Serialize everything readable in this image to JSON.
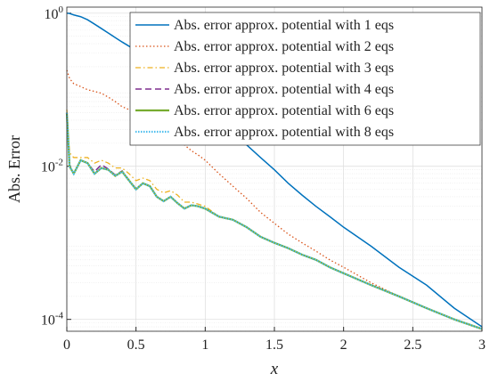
{
  "chart_data": {
    "type": "line",
    "xlabel": "x",
    "ylabel": "Abs. Error",
    "x": [
      0,
      0.02,
      0.05,
      0.1,
      0.15,
      0.2,
      0.25,
      0.3,
      0.35,
      0.4,
      0.45,
      0.5,
      0.55,
      0.6,
      0.65,
      0.7,
      0.75,
      0.8,
      0.85,
      0.9,
      0.95,
      1.0,
      1.1,
      1.2,
      1.3,
      1.4,
      1.5,
      1.6,
      1.7,
      1.8,
      1.9,
      2.0,
      2.2,
      2.4,
      2.6,
      2.8,
      3.0
    ],
    "series": [
      {
        "name": "Abs. error approx. potential with 1 eqs",
        "color": "#0072bd",
        "dash": "none",
        "width": 1.5,
        "values": [
          1.0,
          0.99,
          0.95,
          0.9,
          0.82,
          0.72,
          0.63,
          0.55,
          0.48,
          0.42,
          0.37,
          0.32,
          0.27,
          0.23,
          0.19,
          0.16,
          0.13,
          0.11,
          0.095,
          0.08,
          0.068,
          0.058,
          0.04,
          0.028,
          0.019,
          0.013,
          0.009,
          0.006,
          0.0042,
          0.003,
          0.0022,
          0.0016,
          0.0009,
          0.00048,
          0.00028,
          0.00014,
          8e-05
        ]
      },
      {
        "name": "Abs. error approx. potential with 2 eqs",
        "color": "#d95319",
        "dash": "1.5 2.5",
        "width": 1.3,
        "values": [
          0.18,
          0.14,
          0.12,
          0.11,
          0.1,
          0.095,
          0.09,
          0.08,
          0.07,
          0.06,
          0.055,
          0.05,
          0.045,
          0.04,
          0.035,
          0.03,
          0.027,
          0.022,
          0.019,
          0.016,
          0.014,
          0.012,
          0.008,
          0.0055,
          0.0038,
          0.0025,
          0.0018,
          0.0013,
          0.001,
          0.00078,
          0.0006,
          0.00048,
          0.0003,
          0.0002,
          0.00014,
          0.0001,
          7.5e-05
        ]
      },
      {
        "name": "Abs. error approx. potential with 3 eqs",
        "color": "#edb120",
        "dash": "6 3 1.5 3",
        "width": 1.3,
        "values": [
          0.055,
          0.015,
          0.013,
          0.013,
          0.013,
          0.011,
          0.012,
          0.011,
          0.0095,
          0.0095,
          0.008,
          0.0065,
          0.007,
          0.0065,
          0.005,
          0.0045,
          0.0048,
          0.0042,
          0.0034,
          0.0034,
          0.0032,
          0.003,
          0.0022,
          0.002,
          0.0016,
          0.0012,
          0.001,
          0.00085,
          0.0007,
          0.0006,
          0.00048,
          0.0004,
          0.00028,
          0.0002,
          0.00014,
          0.0001,
          7.5e-05
        ]
      },
      {
        "name": "Abs. error approx. potential with 4 eqs",
        "color": "#7e2f8e",
        "dash": "7 4",
        "width": 1.5,
        "values": [
          0.05,
          0.01,
          0.008,
          0.012,
          0.011,
          0.0085,
          0.0105,
          0.0092,
          0.0077,
          0.0087,
          0.0066,
          0.0051,
          0.006,
          0.0055,
          0.004,
          0.0035,
          0.004,
          0.0033,
          0.0028,
          0.0031,
          0.003,
          0.0028,
          0.0022,
          0.002,
          0.0016,
          0.0012,
          0.001,
          0.00085,
          0.0007,
          0.0006,
          0.00048,
          0.0004,
          0.00028,
          0.0002,
          0.00014,
          0.0001,
          7.5e-05
        ]
      },
      {
        "name": "Abs. error approx. potential with 6 eqs",
        "color": "#77ac30",
        "dash": "none",
        "width": 2.2,
        "values": [
          0.05,
          0.01,
          0.008,
          0.012,
          0.011,
          0.008,
          0.0095,
          0.009,
          0.0075,
          0.0085,
          0.0065,
          0.005,
          0.006,
          0.0055,
          0.004,
          0.0035,
          0.004,
          0.0033,
          0.0028,
          0.0031,
          0.003,
          0.0028,
          0.0022,
          0.002,
          0.0016,
          0.0012,
          0.001,
          0.00085,
          0.0007,
          0.0006,
          0.00048,
          0.0004,
          0.00028,
          0.0002,
          0.00014,
          0.0001,
          7.5e-05
        ]
      },
      {
        "name": "Abs. error approx. potential with 8 eqs",
        "color": "#4dbeee",
        "dash": "1.5 1.5",
        "width": 2.2,
        "values": [
          0.05,
          0.01,
          0.008,
          0.012,
          0.011,
          0.008,
          0.0095,
          0.009,
          0.0075,
          0.0085,
          0.0065,
          0.005,
          0.006,
          0.0055,
          0.004,
          0.0035,
          0.004,
          0.0033,
          0.0028,
          0.0031,
          0.003,
          0.0028,
          0.0022,
          0.002,
          0.0016,
          0.0012,
          0.001,
          0.00085,
          0.0007,
          0.0006,
          0.00048,
          0.0004,
          0.00028,
          0.0002,
          0.00014,
          0.0001,
          7.5e-05
        ]
      }
    ],
    "xlim": [
      0,
      3
    ],
    "xticks": [
      0,
      0.5,
      1,
      1.5,
      2,
      2.5,
      3
    ],
    "ylim": [
      7e-05,
      1.2
    ],
    "ylog": true,
    "yticks": [
      {
        "value": 0.0001,
        "label": "10^-4"
      },
      {
        "value": 0.01,
        "label": "10^-2"
      },
      {
        "value": 1,
        "label": "10^0"
      }
    ],
    "grid": true,
    "minor_grid": true,
    "legend": "top-right"
  }
}
